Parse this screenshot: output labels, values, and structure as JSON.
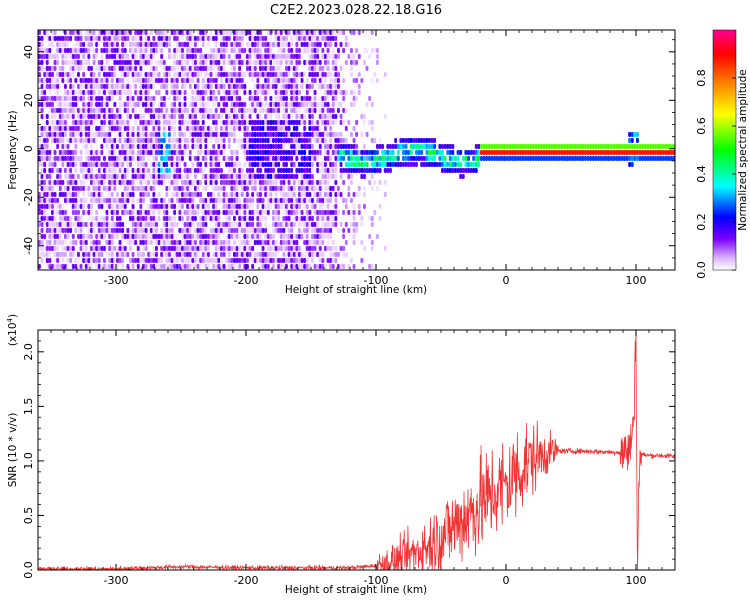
{
  "figure_title": "C2E2.2023.028.22.18.G16",
  "chart_data": [
    {
      "type": "heatmap",
      "title": "",
      "xlabel": "Height of straight line (km)",
      "ylabel": "Frequency (Hz)",
      "xlim": [
        -360,
        130
      ],
      "ylim": [
        -50,
        49
      ],
      "xticks": [
        -300,
        -200,
        -100,
        0,
        100
      ],
      "yticks": [
        -40,
        -20,
        0,
        20,
        40
      ],
      "colorbar": {
        "label": "Normalized spectral amplitude",
        "range": [
          0.0,
          1.0
        ],
        "ticks": [
          0.0,
          0.2,
          0.4,
          0.6,
          0.8
        ],
        "colormap": [
          "#ffffff",
          "#e6c8ff",
          "#7a00ff",
          "#0000ff",
          "#00ffff",
          "#00ff00",
          "#ffff00",
          "#ff8000",
          "#ff0000",
          "#ff00c0"
        ]
      },
      "features": [
        {
          "description_x_range": [
            -360,
            -95
          ],
          "frequency_spread": [
            -50,
            49
          ],
          "amplitude": 0.1
        },
        {
          "description_x_range": [
            -95,
            -20
          ],
          "frequency_center": 0,
          "amplitude": 0.4
        },
        {
          "description_x_range": [
            -20,
            130
          ],
          "frequency_center": 0,
          "amplitude": 0.85
        },
        {
          "x": 97,
          "frequency_center": 0,
          "amplitude": 0.3
        },
        {
          "x": -265,
          "frequency_center": 0,
          "amplitude": 0.3
        }
      ]
    },
    {
      "type": "line",
      "title": "",
      "xlabel": "Height of straight line (km)",
      "ylabel": "SNR (10 * v/v)",
      "y_multiplier_label": "(x10",
      "y_multiplier_exp": "4",
      "y_multiplier_close": ")",
      "xlim": [
        -360,
        130
      ],
      "ylim": [
        0.0,
        2.2
      ],
      "xticks": [
        -300,
        -200,
        -100,
        0,
        100
      ],
      "yticks": [
        "0.0",
        "0.5",
        "1.0",
        "1.5",
        "2.0"
      ],
      "series": [
        {
          "color": "#ee3333",
          "x": [
            -360,
            -300,
            -250,
            -200,
            -150,
            -120,
            -100,
            -80,
            -60,
            -40,
            -20,
            -10,
            0,
            10,
            20,
            30,
            40,
            60,
            80,
            90,
            95,
            98,
            100,
            101,
            103,
            110,
            120,
            130
          ],
          "y": [
            0.01,
            0.01,
            0.03,
            0.02,
            0.02,
            0.02,
            0.04,
            0.1,
            0.22,
            0.4,
            0.6,
            0.7,
            0.78,
            0.92,
            1.02,
            1.07,
            1.09,
            1.09,
            1.08,
            1.08,
            1.1,
            1.3,
            2.2,
            0.1,
            1.06,
            1.05,
            1.05,
            1.04
          ]
        }
      ]
    }
  ]
}
